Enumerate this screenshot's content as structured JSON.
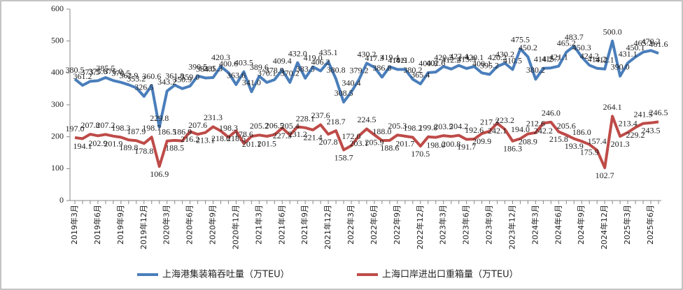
{
  "chart_data": {
    "type": "line",
    "categories": [
      "2019年3月",
      null,
      null,
      "2019年6月",
      null,
      null,
      "2019年9月",
      null,
      null,
      "2019年12月",
      null,
      null,
      "2020年3月",
      null,
      null,
      "2020年6月",
      null,
      null,
      "2020年9月",
      null,
      null,
      "2020年12月",
      null,
      null,
      "2021年3月",
      null,
      null,
      "2021年6月",
      null,
      null,
      "2021年9月",
      null,
      null,
      "2021年12月",
      null,
      null,
      "2022年3月",
      null,
      null,
      "2022年6月",
      null,
      null,
      "2022年9月",
      null,
      null,
      "2022年12月",
      null,
      null,
      "2023年3月",
      null,
      null,
      "2023年6月",
      null,
      null,
      "2023年9月",
      null,
      null,
      "2023年12月",
      null,
      null,
      "2024年3月",
      null,
      null,
      "2024年6月",
      null,
      null,
      "2024年9月",
      null,
      null,
      "2024年12月",
      null,
      null,
      "2025年3月",
      null,
      null,
      "2025年6月",
      null
    ],
    "series": [
      {
        "name": "上海港集装箱吞吐量（万TEU）",
        "color": "#4a7ebb",
        "values": [
          380.5,
          361.2,
          373.5,
          375.6,
          385.5,
          376.0,
          370.5,
          362.9,
          353.2,
          326.5,
          360.6,
          229.8,
          343.2,
          361.8,
          350.9,
          359.0,
          390.5,
          384.0,
          385.3,
          420.3,
          400.6,
          363.6,
          403.5,
          341.0,
          389.6,
          370.1,
          378.9,
          409.4,
          370.2,
          432.0,
          383.5,
          419.0,
          406.2,
          435.1,
          380.8,
          308.5,
          340.4,
          379.2,
          430.2,
          417.3,
          386.8,
          419.4,
          410.9,
          411.0,
          380.2,
          365.4,
          400.8,
          402.6,
          420.2,
          412.2,
          423.4,
          413.9,
          420.1,
          400.1,
          395.2,
          420.2,
          430.2,
          410.5,
          475.5,
          450.2,
          380.2,
          414.2,
          415.7,
          421.1,
          465.2,
          483.7,
          450.3,
          424.2,
          414.2,
          412.1,
          500.0,
          390.0,
          431.1,
          450.1,
          465.2,
          470.2,
          461.6
        ],
        "value_labels": [
          "380.5",
          "361.2",
          "373.5",
          "375.6",
          "385.5",
          "376.0",
          "370.5",
          "362.9",
          "353.2",
          "326.5",
          "360.6",
          "229.8",
          "343.2",
          "361.8",
          "350.9",
          "359.0",
          "390.5",
          "384.0",
          "385.3",
          "420.3",
          "400.6",
          "363.6",
          "403.5",
          "341.0",
          "389.6",
          "370.1",
          "378.9",
          "409.4",
          "370.2",
          "432.0",
          "383.5",
          "419.0",
          "406.2",
          "435.1",
          "380.8",
          "308.5",
          "340.4",
          "379.2",
          "430.2",
          "417.3",
          "386.8",
          "419.4",
          "410.9",
          "411.0",
          "380.2",
          "365.4",
          "400.8",
          "402.6",
          "420.2",
          "412.2",
          "423.4",
          "413.9",
          "420.1",
          "400.1",
          "395.2",
          "420.2",
          "430.2",
          "410.5",
          "475.5",
          "450.2",
          "380.2",
          "414.2",
          "415.7",
          "421.1",
          "465.2",
          "483.7",
          "450.3",
          "424.2",
          "414.2",
          "412.1",
          "500.0",
          "390.0",
          "431.1",
          "450.1",
          "465.2",
          "470.2",
          "461.6"
        ]
      },
      {
        "name": "上海口岸进出口重箱量（万TEU）",
        "color": "#be4b48",
        "values": [
          197.0,
          194.1,
          207.8,
          202.9,
          207.2,
          201.9,
          198.3,
          189.8,
          187.9,
          178.8,
          198.7,
          106.9,
          186.5,
          188.5,
          186.9,
          216.2,
          207.6,
          213.1,
          231.3,
          218.0,
          198.3,
          218.5,
          178.6,
          201.1,
          205.2,
          201.5,
          206.5,
          227.3,
          205.4,
          231.2,
          228.1,
          221.4,
          237.6,
          207.8,
          218.7,
          158.7,
          172.0,
          203.1,
          224.5,
          205.9,
          188.0,
          188.6,
          205.3,
          201.7,
          198.2,
          170.5,
          199.8,
          198.0,
          203.5,
          200.8,
          204.2,
          191.7,
          192.6,
          209.9,
          217.3,
          242.1,
          223.2,
          186.3,
          194.0,
          208.9,
          212.6,
          242.2,
          246.0,
          215.8,
          205.6,
          193.9,
          186.0,
          175.9,
          157.4,
          102.7,
          264.1,
          201.3,
          213.4,
          229.2,
          241.5,
          243.5,
          246.5
        ],
        "value_labels": [
          "197.0",
          "194.1",
          "207.8",
          "202.9",
          "207.2",
          "201.9",
          "198.3",
          "189.8",
          "187.9",
          "178.8",
          "198.7",
          "106.9",
          "186.5",
          "188.5",
          "186.9",
          "216.2",
          "207.6",
          "213.1",
          "231.3",
          "218.0",
          "198.3",
          "218.5",
          "178.6",
          "201.1",
          "205.2",
          "201.5",
          "206.5",
          "227.3",
          "205.4",
          "231.2",
          "228.1",
          "221.4",
          "237.6",
          "207.8",
          "218.7",
          "158.7",
          "172.0",
          "203.1",
          "224.5",
          "205.9",
          "188.0",
          "188.6",
          "205.3",
          "201.7",
          "198.2",
          "170.5",
          "199.8",
          "198.0",
          "203.5",
          "200.8",
          "204.2",
          "191.7",
          "192.6",
          "209.9",
          "217.3",
          "242.1",
          "223.2",
          "186.3",
          "194.0",
          "208.9",
          "212.6",
          "242.2",
          "246.0",
          "215.8",
          "205.6",
          "193.9",
          "186.0",
          "175.9",
          "157.4",
          "102.7",
          "264.1",
          "201.3",
          "213.4",
          "229.2",
          "241.5",
          "243.5",
          "246.5"
        ]
      }
    ],
    "ylim": [
      0,
      600
    ],
    "yticks": [
      0,
      100,
      200,
      300,
      400,
      500,
      600
    ],
    "grid": false,
    "legend": "bottom"
  }
}
